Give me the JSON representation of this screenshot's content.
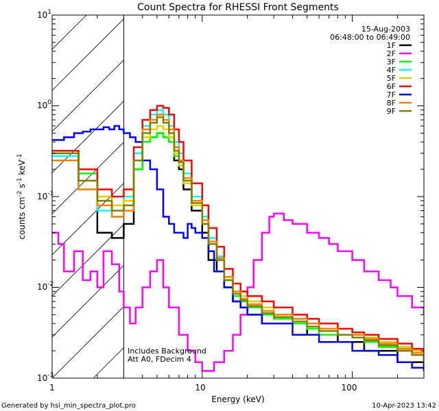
{
  "chart_data": {
    "type": "line",
    "title": "Count Spectra for RHESSI Front Segments",
    "xlabel": "Energy (keV)",
    "ylabel": "counts cm-2 s-1 keV-1",
    "ylabel_parts": {
      "base": "counts cm",
      "e1": "-2",
      "mid": " s",
      "e2": "-1",
      "end": " keV",
      "e3": "-1"
    },
    "xscale": "log",
    "yscale": "log",
    "xlim": [
      1,
      300
    ],
    "ylim": [
      0.001,
      10
    ],
    "x_tick_labels": [
      "1",
      "10",
      "100"
    ],
    "y_tick_labels": [
      {
        "base": "10",
        "exp": "-3"
      },
      {
        "base": "10",
        "exp": "-2"
      },
      {
        "base": "10",
        "exp": "-1"
      },
      {
        "base": "10",
        "exp": "0"
      },
      {
        "base": "10",
        "exp": "1"
      }
    ],
    "hatched_region_x": [
      1,
      3
    ],
    "date": "15-Aug-2003",
    "time_range": "06:48:00 to 06:49:00",
    "annotation_lines": [
      "Includes Background",
      "Att A0, FDecim 4"
    ],
    "footer_left": "Generated by hsi_min_spectra_plot.pro",
    "footer_right": "10-Apr-2023 13:42",
    "series": [
      {
        "name": "1F",
        "color": "#000000",
        "x": [
          1,
          1.5,
          2.0,
          2.5,
          3.0,
          3.5,
          4.0,
          4.5,
          5.0,
          5.5,
          6.0,
          6.5,
          7.0,
          7.5,
          8.5,
          10,
          11,
          12.5,
          14,
          16,
          18,
          20,
          25,
          30,
          40,
          50,
          60,
          80,
          100,
          120,
          150,
          200,
          250,
          300
        ],
        "y": [
          0.3,
          0.15,
          0.04,
          0.035,
          0.05,
          0.2,
          0.4,
          0.45,
          0.5,
          0.45,
          0.4,
          0.25,
          0.2,
          0.12,
          0.07,
          0.04,
          0.02,
          0.015,
          0.01,
          0.007,
          0.006,
          0.005,
          0.004,
          0.004,
          0.004,
          0.003,
          0.003,
          0.0025,
          0.0025,
          0.002,
          0.002,
          0.0015,
          0.0015,
          0.0012
        ]
      },
      {
        "name": "2F",
        "color": "#ff00ff",
        "x": [
          1,
          1.1,
          1.2,
          1.4,
          1.6,
          1.8,
          2.0,
          2.2,
          2.5,
          2.8,
          3.0,
          3.3,
          3.6,
          4.0,
          4.5,
          5.0,
          5.5,
          6.0,
          7.0,
          8.0,
          9.0,
          10,
          12,
          14,
          16,
          18,
          20,
          22,
          25,
          28,
          30,
          35,
          40,
          50,
          60,
          70,
          80,
          100,
          120,
          150,
          180,
          200,
          250,
          300
        ],
        "y": [
          0.04,
          0.03,
          0.015,
          0.025,
          0.012,
          0.015,
          0.01,
          0.025,
          0.018,
          0.009,
          0.006,
          0.004,
          0.006,
          0.01,
          0.015,
          0.02,
          0.01,
          0.006,
          0.003,
          0.002,
          0.0015,
          0.0012,
          0.0015,
          0.002,
          0.003,
          0.005,
          0.01,
          0.02,
          0.04,
          0.06,
          0.065,
          0.055,
          0.05,
          0.04,
          0.035,
          0.03,
          0.025,
          0.02,
          0.015,
          0.012,
          0.01,
          0.008,
          0.006,
          0.005
        ]
      },
      {
        "name": "3F",
        "color": "#00ff00",
        "x": [
          1,
          1.5,
          2.0,
          2.5,
          3.0,
          3.5,
          4.0,
          4.5,
          5.0,
          5.5,
          6.0,
          6.5,
          7.0,
          7.5,
          8.5,
          10,
          11,
          12.5,
          14,
          16,
          18,
          20,
          25,
          30,
          40,
          50,
          60,
          80,
          100,
          120,
          150,
          200,
          250,
          300
        ],
        "y": [
          0.25,
          0.18,
          0.08,
          0.06,
          0.08,
          0.2,
          0.4,
          0.45,
          0.5,
          0.45,
          0.4,
          0.28,
          0.22,
          0.15,
          0.08,
          0.05,
          0.03,
          0.02,
          0.012,
          0.008,
          0.007,
          0.006,
          0.005,
          0.0045,
          0.004,
          0.0035,
          0.003,
          0.003,
          0.0028,
          0.0025,
          0.0022,
          0.002,
          0.0018,
          0.0015
        ]
      },
      {
        "name": "4F",
        "color": "#00ffff",
        "x": [
          1,
          1.5,
          2.0,
          2.5,
          3.0,
          3.5,
          4.0,
          4.5,
          5.0,
          5.5,
          6.0,
          6.5,
          7.0,
          7.5,
          8.5,
          10,
          11,
          12.5,
          14,
          16,
          18,
          20,
          25,
          30,
          40,
          50,
          60,
          80,
          100,
          120,
          150,
          200,
          250,
          300
        ],
        "y": [
          0.28,
          0.12,
          0.07,
          0.06,
          0.1,
          0.3,
          0.6,
          0.8,
          0.9,
          0.8,
          0.6,
          0.4,
          0.3,
          0.18,
          0.1,
          0.06,
          0.035,
          0.022,
          0.013,
          0.009,
          0.008,
          0.007,
          0.006,
          0.005,
          0.0045,
          0.004,
          0.0035,
          0.003,
          0.003,
          0.0028,
          0.0025,
          0.0022,
          0.002,
          0.0018
        ]
      },
      {
        "name": "5F",
        "color": "#e0d000",
        "x": [
          1,
          1.5,
          2.0,
          2.5,
          3.0,
          3.5,
          4.0,
          4.5,
          5.0,
          5.5,
          6.0,
          6.5,
          7.0,
          7.5,
          8.5,
          10,
          11,
          12.5,
          14,
          16,
          18,
          20,
          25,
          30,
          40,
          50,
          60,
          80,
          100,
          120,
          150,
          200,
          250,
          300
        ],
        "y": [
          0.3,
          0.15,
          0.1,
          0.08,
          0.09,
          0.25,
          0.45,
          0.55,
          0.6,
          0.55,
          0.45,
          0.3,
          0.22,
          0.14,
          0.08,
          0.05,
          0.03,
          0.02,
          0.012,
          0.009,
          0.008,
          0.007,
          0.006,
          0.005,
          0.0045,
          0.004,
          0.0035,
          0.003,
          0.003,
          0.0028,
          0.0025,
          0.0022,
          0.002,
          0.0018
        ]
      },
      {
        "name": "6F",
        "color": "#ff0000",
        "x": [
          1,
          1.5,
          2.0,
          2.5,
          3.0,
          3.5,
          4.0,
          4.5,
          5.0,
          5.5,
          6.0,
          6.5,
          7.0,
          7.5,
          8.5,
          10,
          11,
          12.5,
          14,
          16,
          18,
          20,
          25,
          30,
          40,
          50,
          60,
          80,
          100,
          120,
          150,
          200,
          250,
          300
        ],
        "y": [
          0.32,
          0.2,
          0.12,
          0.1,
          0.12,
          0.35,
          0.7,
          0.9,
          1.0,
          0.95,
          0.8,
          0.55,
          0.4,
          0.25,
          0.14,
          0.08,
          0.045,
          0.028,
          0.016,
          0.011,
          0.009,
          0.008,
          0.007,
          0.006,
          0.005,
          0.0045,
          0.004,
          0.0035,
          0.0032,
          0.003,
          0.0027,
          0.0024,
          0.0021,
          0.0018
        ]
      },
      {
        "name": "7F",
        "color": "#0000ff",
        "x": [
          1,
          1.2,
          1.4,
          1.6,
          1.8,
          2.0,
          2.2,
          2.4,
          2.6,
          2.8,
          3.0,
          3.3,
          3.6,
          4.0,
          4.5,
          5.0,
          5.5,
          6.0,
          6.5,
          7.0,
          7.5,
          8.0,
          8.5,
          9.0,
          10,
          11,
          12,
          14,
          16,
          18,
          20,
          25,
          30,
          40,
          50,
          60,
          80,
          100,
          120,
          150,
          200,
          250,
          300
        ],
        "y": [
          0.42,
          0.45,
          0.5,
          0.52,
          0.55,
          0.55,
          0.58,
          0.55,
          0.6,
          0.55,
          0.5,
          0.45,
          0.4,
          0.25,
          0.2,
          0.12,
          0.06,
          0.05,
          0.04,
          0.04,
          0.035,
          0.05,
          0.045,
          0.04,
          0.035,
          0.025,
          0.015,
          0.01,
          0.007,
          0.006,
          0.005,
          0.004,
          0.004,
          0.003,
          0.003,
          0.0025,
          0.0025,
          0.002,
          0.002,
          0.0018,
          0.0015,
          0.0013,
          0.0012
        ]
      },
      {
        "name": "8F",
        "color": "#ff8000",
        "x": [
          1,
          1.5,
          2.0,
          2.5,
          3.0,
          3.5,
          4.0,
          4.5,
          5.0,
          5.5,
          6.0,
          6.5,
          7.0,
          7.5,
          8.5,
          10,
          11,
          12.5,
          14,
          16,
          18,
          20,
          25,
          30,
          40,
          50,
          60,
          80,
          100,
          120,
          150,
          200,
          250,
          300
        ],
        "y": [
          0.25,
          0.12,
          0.08,
          0.06,
          0.07,
          0.25,
          0.55,
          0.7,
          0.8,
          0.7,
          0.55,
          0.35,
          0.25,
          0.16,
          0.09,
          0.055,
          0.032,
          0.021,
          0.013,
          0.009,
          0.0075,
          0.0065,
          0.0055,
          0.005,
          0.0045,
          0.004,
          0.0035,
          0.003,
          0.003,
          0.0027,
          0.0024,
          0.0021,
          0.0019,
          0.0016
        ]
      },
      {
        "name": "9F",
        "color": "#808000",
        "x": [
          1,
          1.5,
          2.0,
          2.5,
          3.0,
          3.5,
          4.0,
          4.5,
          5.0,
          5.5,
          6.0,
          6.5,
          7.0,
          7.5,
          8.5,
          10,
          11,
          12.5,
          14,
          16,
          18,
          20,
          25,
          30,
          40,
          50,
          60,
          80,
          100,
          120,
          150,
          200,
          250,
          300
        ],
        "y": [
          0.3,
          0.15,
          0.09,
          0.07,
          0.08,
          0.25,
          0.5,
          0.65,
          0.75,
          0.65,
          0.5,
          0.32,
          0.24,
          0.15,
          0.085,
          0.05,
          0.03,
          0.02,
          0.012,
          0.0085,
          0.0072,
          0.0062,
          0.0052,
          0.0047,
          0.0042,
          0.0037,
          0.0033,
          0.003,
          0.0028,
          0.0026,
          0.0023,
          0.002,
          0.0018,
          0.0015
        ]
      }
    ]
  }
}
